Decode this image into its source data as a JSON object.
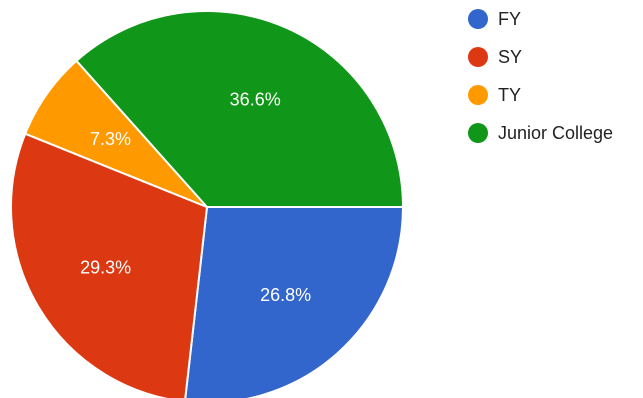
{
  "chart_data": {
    "type": "pie",
    "title": "",
    "legend": "right",
    "slices": [
      {
        "name": "FY",
        "value": 26.8,
        "label": "26.8%",
        "color": "#3366cc"
      },
      {
        "name": "SY",
        "value": 29.3,
        "label": "29.3%",
        "color": "#dc3912"
      },
      {
        "name": "TY",
        "value": 7.3,
        "label": "7.3%",
        "color": "#ff9900"
      },
      {
        "name": "Junior College",
        "value": 36.6,
        "label": "36.6%",
        "color": "#109618"
      }
    ]
  }
}
